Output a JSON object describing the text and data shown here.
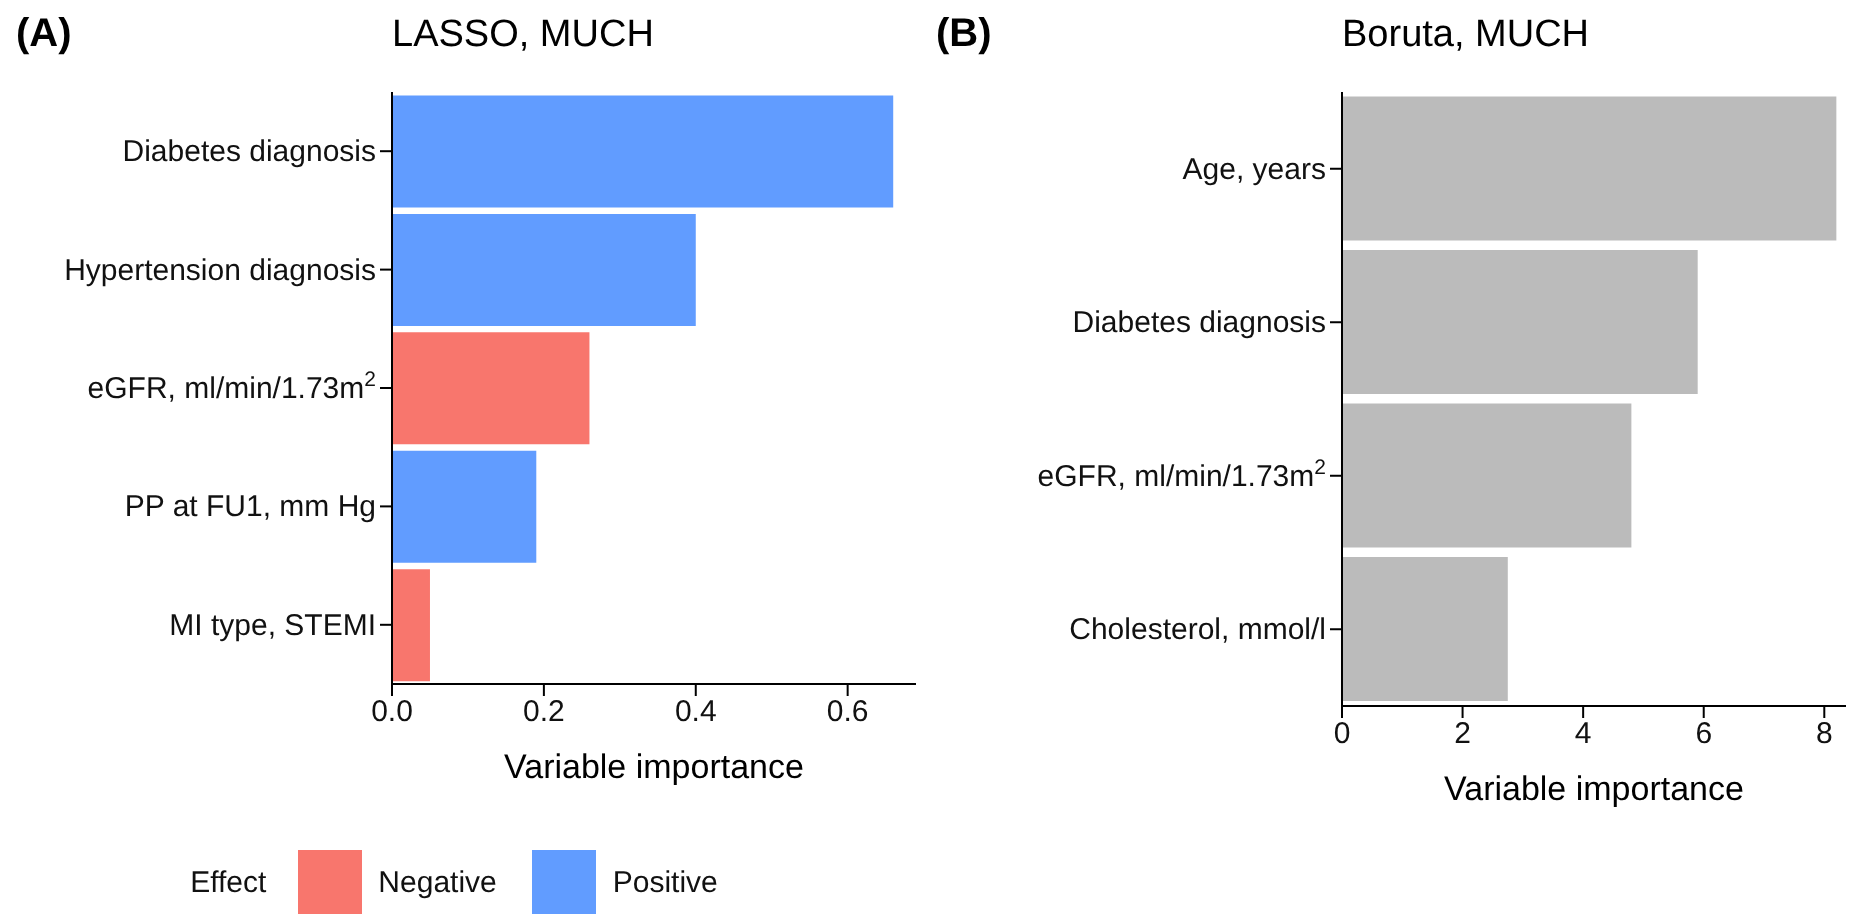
{
  "chart_data": [
    {
      "type": "bar",
      "orientation": "horizontal",
      "stacked": true,
      "title": "LASSO, MUCH",
      "xlabel": "Variable importance",
      "legend_title": "Effect",
      "legend": "bottom",
      "annotations": [
        "(A)"
      ],
      "categories": [
        "Diabetes diagnosis",
        "Hypertension diagnosis",
        "eGFR, ml/min/1.73m$^{2}$",
        "PP at FU1, mm Hg",
        "MI type, STEMI"
      ],
      "series": [
        {
          "name": "Negative",
          "color": "#f8766d",
          "values": [
            null,
            null,
            0.26,
            null,
            0.05
          ]
        },
        {
          "name": "Positive",
          "color": "#619cff",
          "values": [
            0.66,
            0.4,
            null,
            0.19,
            null
          ]
        }
      ],
      "xlim": [
        0,
        0.69
      ],
      "xticks": [
        {
          "value": 0,
          "label": "0.0"
        },
        0.2,
        0.4,
        0.6
      ]
    },
    {
      "type": "bar",
      "orientation": "horizontal",
      "title": "Boruta, MUCH",
      "xlabel": "Variable importance",
      "annotations": [
        "(B)"
      ],
      "categories": [
        "Age, years",
        "Diabetes diagnosis",
        "eGFR, ml/min/1.73m$^{2}$",
        "Cholesterol, mmol/l"
      ],
      "values": [
        8.2,
        5.9,
        4.8,
        2.75
      ],
      "color": "#bbbbbb",
      "xlim": [
        0,
        8.36
      ],
      "xticks": [
        0,
        2,
        4,
        6,
        8
      ]
    }
  ]
}
